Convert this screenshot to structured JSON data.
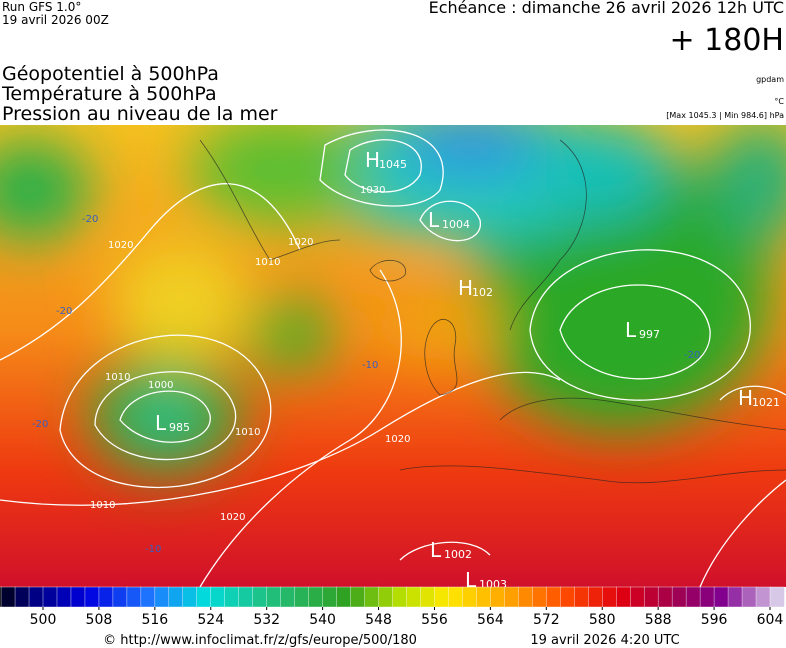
{
  "header": {
    "run": "Run GFS 1.0°",
    "run_date": "19 avril 2026 00Z",
    "valid": "Echéance : dimanche 26 avril 2026 12h UTC",
    "lead": "+ 180H"
  },
  "fields": [
    "Géopotentiel à 500hPa",
    "Température à 500hPa",
    "Pression au niveau de la mer"
  ],
  "units": {
    "geopotential": "gpdam",
    "temperature": "°C",
    "pressure": "[Max 1045.3 | Min 984.6] hPa"
  },
  "centers": [
    {
      "symbol": "H",
      "value": "1045"
    },
    {
      "symbol": "L",
      "value": "1004"
    },
    {
      "symbol": "H",
      "value": "102"
    },
    {
      "symbol": "L",
      "value": "997"
    },
    {
      "symbol": "H",
      "value": "1021"
    },
    {
      "symbol": "L",
      "value": "985"
    },
    {
      "symbol": "L",
      "value": "1002"
    },
    {
      "symbol": "L",
      "value": "1003"
    }
  ],
  "isobar_labels": [
    "1030",
    "1020",
    "1010",
    "1000",
    "1010",
    "1020",
    "1010",
    "1020",
    "1020",
    "1010"
  ],
  "isotherm_labels": [
    "-20",
    "-20",
    "-20",
    "-20",
    "-10",
    "-10"
  ],
  "colorbar": {
    "ticks": [
      500,
      508,
      516,
      524,
      532,
      540,
      548,
      556,
      564,
      572,
      580,
      588,
      596,
      604
    ]
  },
  "footer": {
    "source": "© http://www.infoclimat.fr/z/gfs/europe/500/180",
    "issued": "19 avril 2026  4:20 UTC"
  }
}
